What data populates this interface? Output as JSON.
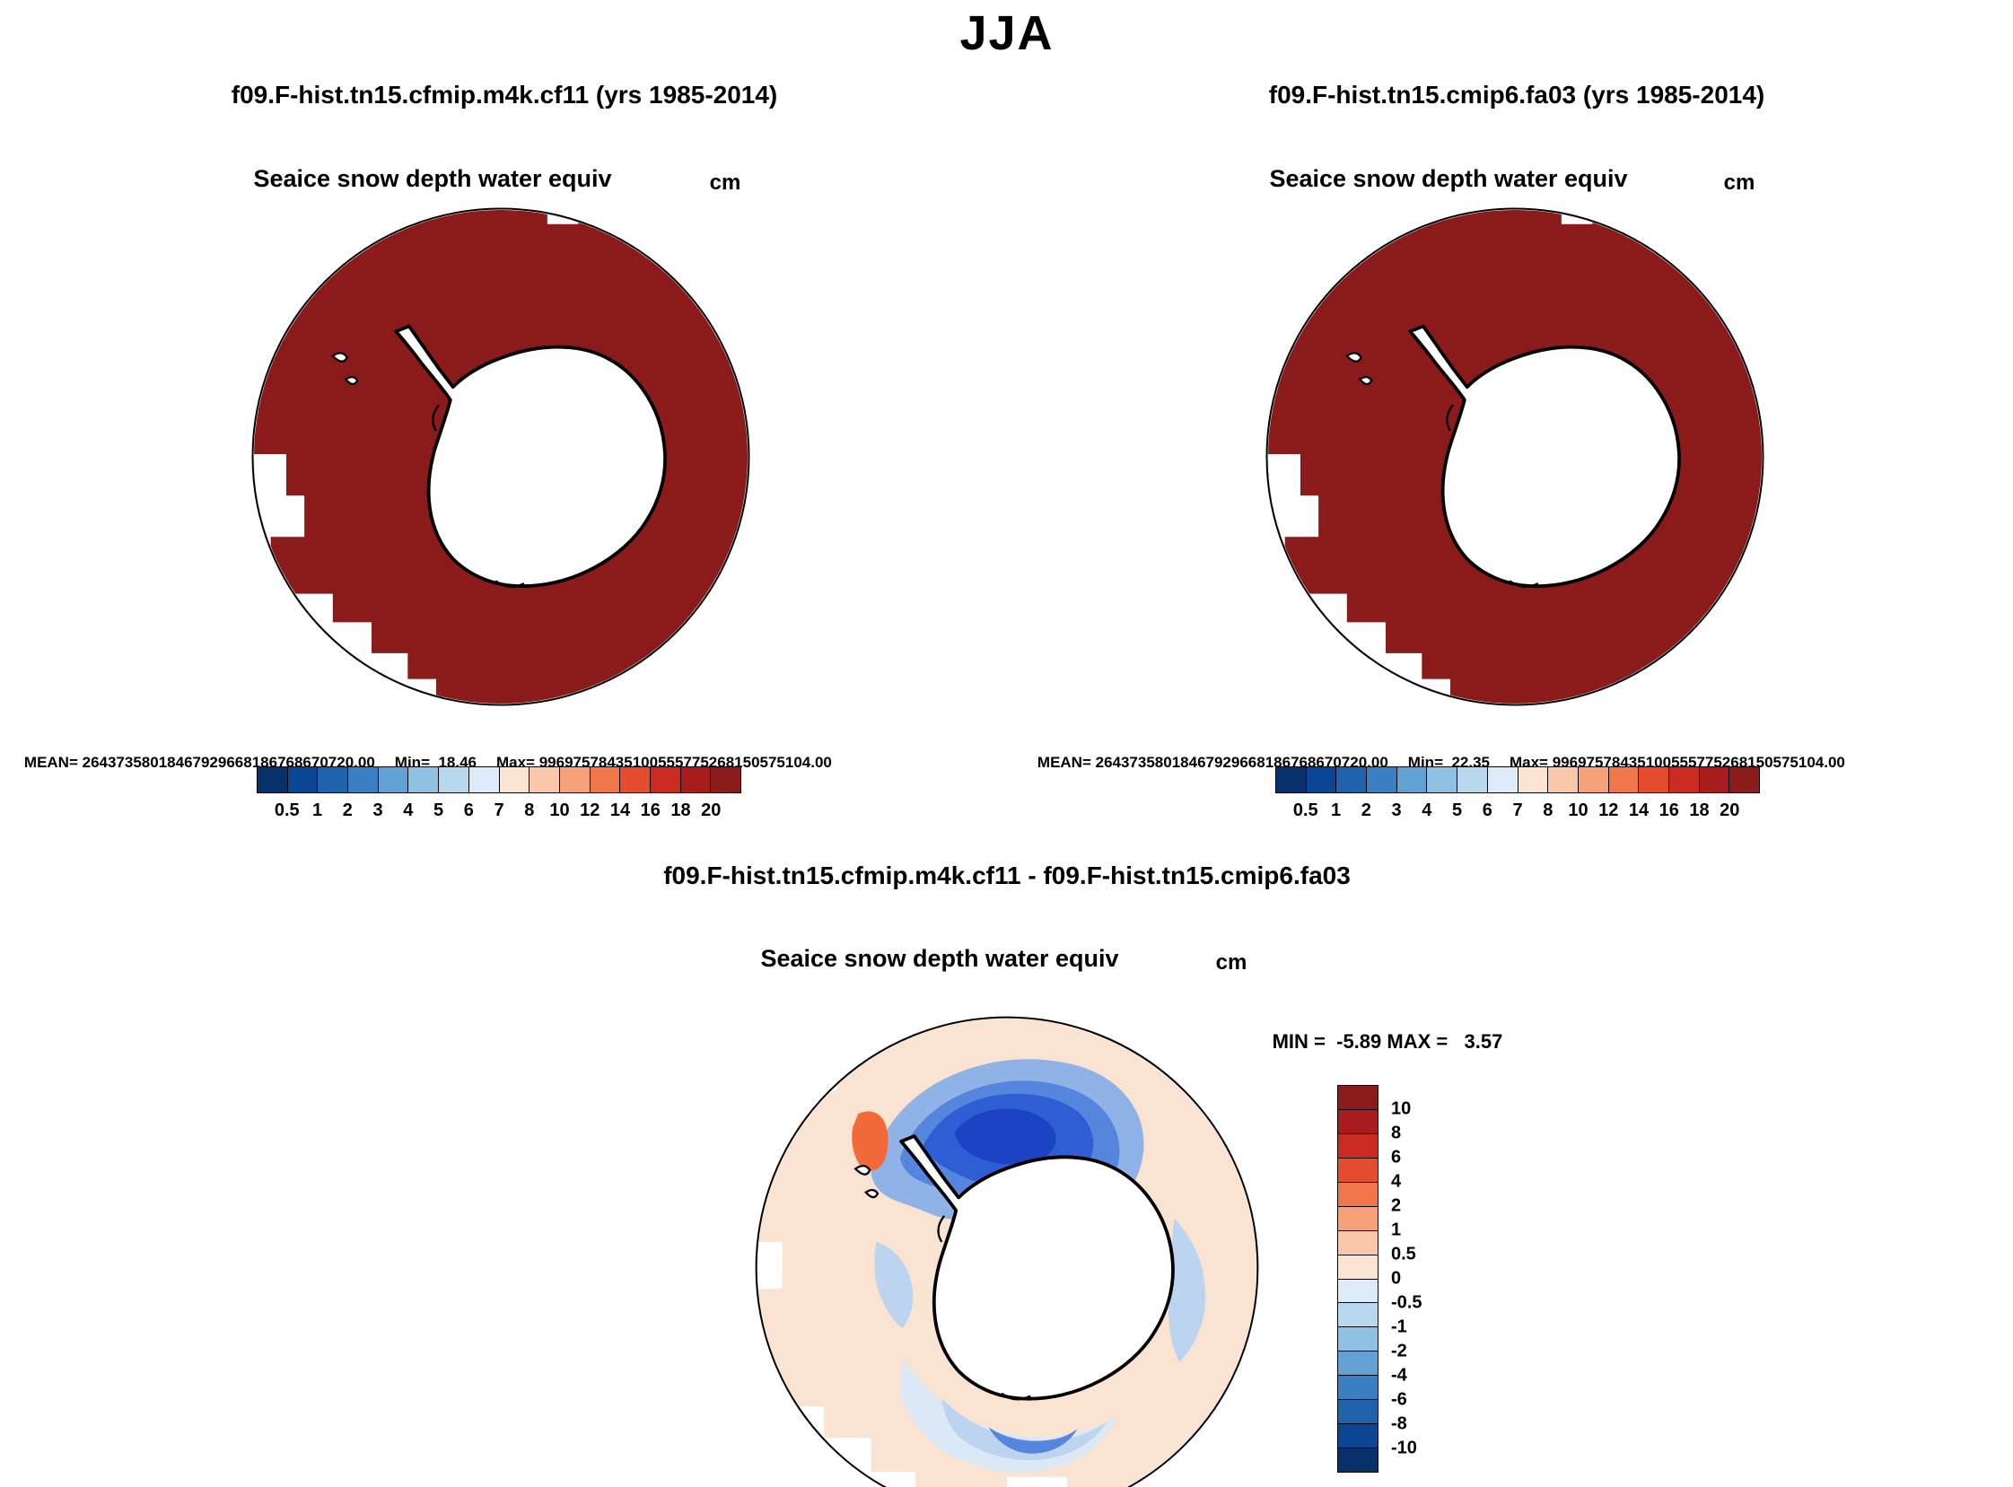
{
  "title": "JJA",
  "colors": {
    "ice_red": "#8b1a1a",
    "outline": "#000000",
    "diff_bg": "#fbe3d2",
    "diff_orange": "#f2693a",
    "diff_blue_core": "#1c43c4",
    "diff_blue_strong": "#2f5ed4",
    "diff_blue_mid": "#5585dc",
    "diff_blue_soft": "#8fb2e7",
    "diff_blue_light": "#bcd4ef",
    "diff_blue_pale": "#dbe8f6"
  },
  "top_colorbar": {
    "colors": [
      "#08306b",
      "#0b4694",
      "#1f63ad",
      "#3a7fc2",
      "#62a1d4",
      "#8fc0e1",
      "#b8d8ed",
      "#dcebf7",
      "#fbe3d2",
      "#f9c7a9",
      "#f6a077",
      "#f0764b",
      "#e54c2e",
      "#cb2a20",
      "#a81c1c",
      "#8b1a1a"
    ],
    "ticks": [
      "0.5",
      "1",
      "2",
      "3",
      "4",
      "5",
      "6",
      "7",
      "8",
      "10",
      "12",
      "14",
      "16",
      "18",
      "20"
    ]
  },
  "diff_colorbar": {
    "colors": [
      "#8b1a1a",
      "#a81c1c",
      "#cb2a20",
      "#e54c2e",
      "#f0764b",
      "#f6a077",
      "#f9c7a9",
      "#fbe3d2",
      "#dcebf7",
      "#b8d8ed",
      "#8fc0e1",
      "#62a1d4",
      "#3a7fc2",
      "#1f63ad",
      "#0b4694",
      "#08306b"
    ],
    "ticks": [
      "10",
      "8",
      "6",
      "4",
      "2",
      "1",
      "0.5",
      "0",
      "-0.5",
      "-1",
      "-2",
      "-4",
      "-6",
      "-8",
      "-10"
    ]
  },
  "panel_left": {
    "title": "f09.F-hist.tn15.cfmip.m4k.cf11 (yrs 1985-2014)",
    "field_label": "Seaice snow depth water equiv",
    "units": "cm",
    "mean": "MEAN= 26437358018467929668186768670720.00",
    "min": "Min=  18.46",
    "max": "Max= 99697578435100555775268150575104.00"
  },
  "panel_right": {
    "title": "f09.F-hist.tn15.cmip6.fa03 (yrs 1985-2014)",
    "field_label": "Seaice snow depth water equiv",
    "units": "cm",
    "mean": "MEAN= 26437358018467929668186768670720.00",
    "min": "Min=  22.35",
    "max": "Max= 99697578435100555775268150575104.00"
  },
  "panel_diff": {
    "title": "f09.F-hist.tn15.cfmip.m4k.cf11 - f09.F-hist.tn15.cmip6.fa03",
    "field_label": "Seaice snow depth water equiv",
    "units": "cm",
    "minmax": "MIN =  -5.89 MAX =   3.57"
  },
  "chart_data": [
    {
      "type": "heatmap",
      "subtype": "south-polar-stereographic-map",
      "panel": "top-left",
      "season": "JJA",
      "title": "f09.F-hist.tn15.cfmip.m4k.cf11 (yrs 1985-2014)",
      "variable": "Seaice snow depth water equiv",
      "units": "cm",
      "stats": {
        "mean": "26437358018467929668186768670720.00",
        "min": 18.46,
        "max": "99697578435100555775268150575104.00"
      },
      "colorbar_levels": [
        0.5,
        1,
        2,
        3,
        4,
        5,
        6,
        7,
        8,
        10,
        12,
        14,
        16,
        18,
        20
      ],
      "colorbar_orientation": "horizontal",
      "description": "Sea-ice covered Southern Ocean saturated at top color (>20 cm, dark red); Antarctic continent blank white with black coastline; open-ocean gaps white near lower-left and left limb of the circular map."
    },
    {
      "type": "heatmap",
      "subtype": "south-polar-stereographic-map",
      "panel": "top-right",
      "season": "JJA",
      "title": "f09.F-hist.tn15.cmip6.fa03 (yrs 1985-2014)",
      "variable": "Seaice snow depth water equiv",
      "units": "cm",
      "stats": {
        "mean": "26437358018467929668186768670720.00",
        "min": 22.35,
        "max": "99697578435100555775268150575104.00"
      },
      "colorbar_levels": [
        0.5,
        1,
        2,
        3,
        4,
        5,
        6,
        7,
        8,
        10,
        12,
        14,
        16,
        18,
        20
      ],
      "colorbar_orientation": "horizontal",
      "description": "Nearly identical to top-left panel: entire sea-ice zone saturated dark red (>20 cm)."
    },
    {
      "type": "heatmap",
      "subtype": "south-polar-stereographic-map",
      "panel": "bottom-difference",
      "season": "JJA",
      "title": "f09.F-hist.tn15.cfmip.m4k.cf11 - f09.F-hist.tn15.cmip6.fa03",
      "variable": "Seaice snow depth water equiv",
      "units": "cm",
      "stats": {
        "min": -5.89,
        "max": 3.57
      },
      "colorbar_levels": [
        -10,
        -8,
        -6,
        -4,
        -2,
        -1,
        -0.5,
        0,
        0.5,
        1,
        2,
        4,
        6,
        8,
        10
      ],
      "colorbar_orientation": "vertical",
      "description": "Difference field mostly in the 0 to 0.5 cm band (pale peach); strong negative (blue, down to about -6) region north of the continent near the Weddell Sea sector; lighter negative arcs along the eastern and southern coastline; small positive (orange, up to about +3.6) patch west of the Antarctic Peninsula."
    }
  ]
}
